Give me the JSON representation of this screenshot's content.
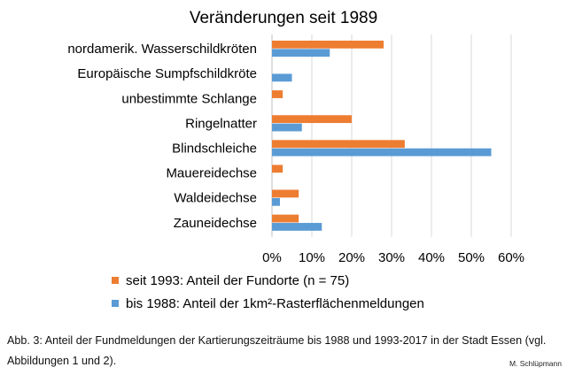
{
  "chart_data": {
    "type": "bar",
    "orientation": "horizontal",
    "title": "Veränderungen seit 1989",
    "categories": [
      "nordamerik. Wasserschildkröten",
      "Europäische Sumpfschildkröte",
      "unbestimmte Schlange",
      "Ringelnatter",
      "Blindschleiche",
      "Mauereidechse",
      "Waldeidechse",
      "Zauneidechse"
    ],
    "series": [
      {
        "name": "seit 1993: Anteil der Fundorte (n = 75)",
        "color": "#ED7D31",
        "values": [
          28,
          null,
          2.7,
          20,
          33.3,
          2.7,
          6.7,
          6.7
        ]
      },
      {
        "name": "bis 1988: Anteil der 1km²-Rasterflächenmeldungen",
        "color": "#5B9BD5",
        "values": [
          14.5,
          5,
          null,
          7.5,
          55,
          null,
          2,
          12.5
        ]
      }
    ],
    "xlim": [
      0,
      60
    ],
    "xticks": [
      "0%",
      "10%",
      "20%",
      "30%",
      "40%",
      "50%",
      "60%"
    ],
    "grid": true,
    "legend_position": "bottom"
  },
  "caption": "Abb. 3: Anteil der Fundmeldungen der Kartierungszeiträume bis 1988 und 1993-2017 in der Stadt Essen (vgl. Abbildungen 1 und 2).",
  "credit": "M. Schlüpmann"
}
